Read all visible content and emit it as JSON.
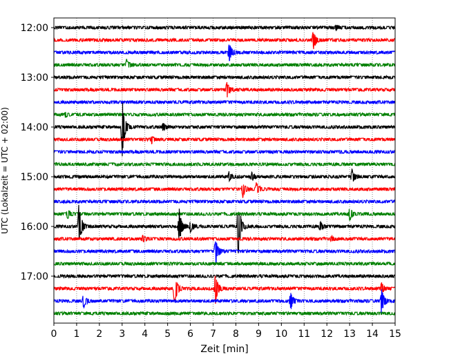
{
  "chart_data": {
    "type": "line",
    "subtype": "helicorder",
    "xlabel": "Zeit  [min]",
    "ylabel": "UTC (Lokalzeit = UTC + 02:00)",
    "xlim": [
      0,
      15
    ],
    "x_ticks": [
      "0",
      "1",
      "2",
      "3",
      "4",
      "5",
      "6",
      "7",
      "8",
      "9",
      "10",
      "11",
      "12",
      "13",
      "14",
      "15"
    ],
    "y_tick_labels": [
      "12:00",
      "13:00",
      "14:00",
      "15:00",
      "16:00",
      "17:00"
    ],
    "trace_start_utc": "12:00",
    "trace_interval_min": 15,
    "trace_count": 24,
    "vertical_grid": true,
    "grid_style": "dotted",
    "trace_colors": [
      "#000000",
      "#ff0000",
      "#0000ff",
      "#008000"
    ],
    "events": [
      {
        "trace": 0,
        "t": 12.4,
        "amp": 0.2
      },
      {
        "trace": 1,
        "t": 11.4,
        "amp": 0.9
      },
      {
        "trace": 2,
        "t": 7.7,
        "amp": 0.9
      },
      {
        "trace": 3,
        "t": 3.2,
        "amp": 0.5
      },
      {
        "trace": 5,
        "t": 7.6,
        "amp": 0.7
      },
      {
        "trace": 7,
        "t": 0.5,
        "amp": 0.2
      },
      {
        "trace": 8,
        "t": 3.0,
        "amp": 2.6
      },
      {
        "trace": 8,
        "t": 4.8,
        "amp": 0.3
      },
      {
        "trace": 9,
        "t": 4.3,
        "amp": 0.3
      },
      {
        "trace": 12,
        "t": 7.7,
        "amp": 0.4
      },
      {
        "trace": 12,
        "t": 8.7,
        "amp": 0.3
      },
      {
        "trace": 12,
        "t": 13.1,
        "amp": 0.6
      },
      {
        "trace": 13,
        "t": 8.3,
        "amp": 0.7
      },
      {
        "trace": 13,
        "t": 8.9,
        "amp": 0.6
      },
      {
        "trace": 15,
        "t": 0.6,
        "amp": 0.4
      },
      {
        "trace": 15,
        "t": 13.0,
        "amp": 0.6
      },
      {
        "trace": 16,
        "t": 1.1,
        "amp": 2.0
      },
      {
        "trace": 16,
        "t": 5.5,
        "amp": 1.6
      },
      {
        "trace": 16,
        "t": 6.0,
        "amp": 0.5
      },
      {
        "trace": 16,
        "t": 8.1,
        "amp": 2.6
      },
      {
        "trace": 16,
        "t": 11.7,
        "amp": 0.4
      },
      {
        "trace": 17,
        "t": 3.9,
        "amp": 0.3
      },
      {
        "trace": 17,
        "t": 12.2,
        "amp": 0.2
      },
      {
        "trace": 18,
        "t": 7.1,
        "amp": 1.3
      },
      {
        "trace": 21,
        "t": 5.3,
        "amp": 1.6
      },
      {
        "trace": 21,
        "t": 7.1,
        "amp": 1.3
      },
      {
        "trace": 21,
        "t": 14.4,
        "amp": 0.5
      },
      {
        "trace": 22,
        "t": 1.3,
        "amp": 0.6
      },
      {
        "trace": 22,
        "t": 10.4,
        "amp": 0.8
      },
      {
        "trace": 22,
        "t": 14.4,
        "amp": 1.2
      }
    ]
  }
}
